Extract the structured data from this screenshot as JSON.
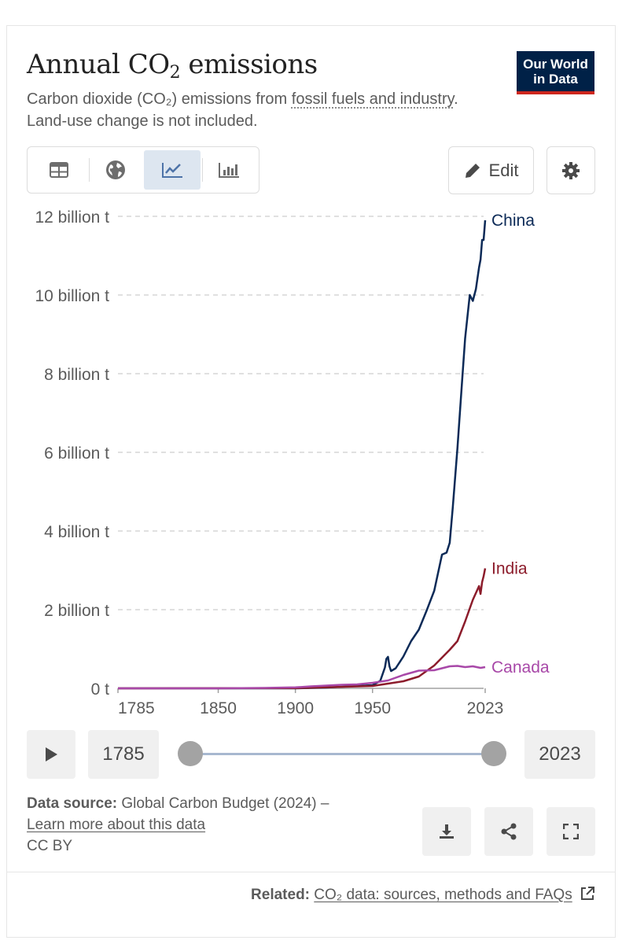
{
  "header": {
    "title_main": "Annual CO",
    "title_sub": "2",
    "title_rest": " emissions",
    "subtitle_pre": "Carbon dioxide (CO₂) emissions from ",
    "subtitle_link": "fossil fuels and industry",
    "subtitle_post": ". Land-use change is not included.",
    "logo_line1": "Our World",
    "logo_line2": "in Data"
  },
  "toolbar": {
    "tabs": [
      {
        "icon": "table-icon"
      },
      {
        "icon": "globe-icon"
      },
      {
        "icon": "line-chart-icon",
        "active": true
      },
      {
        "icon": "bar-chart-icon"
      }
    ],
    "edit_label": "Edit",
    "settings_icon": "gear-icon"
  },
  "colors": {
    "china": "#0c2a57",
    "india": "#8c1c2b",
    "canada": "#a848a8",
    "grid": "#d6d6d6",
    "accent": "#dde6f0"
  },
  "timeline": {
    "play_icon": "play-icon",
    "start_label": "1785",
    "end_label": "2023"
  },
  "footer": {
    "source_label": "Data source:",
    "source_text": " Global Carbon Budget (2024) –",
    "learn_more": "Learn more about this data",
    "license": "CC BY",
    "related_label": "Related:",
    "related_link": "CO₂ data: sources, methods and FAQs"
  },
  "chart_data": {
    "type": "line",
    "y_unit": "t",
    "ylim": [
      0,
      12000000000
    ],
    "xlim": [
      1785,
      2023
    ],
    "x_ticks": [
      "1785",
      "1850",
      "1900",
      "1950",
      "2023"
    ],
    "y_ticks": [
      "0 t",
      "2 billion t",
      "4 billion t",
      "6 billion t",
      "8 billion t",
      "10 billion t",
      "12 billion t"
    ],
    "grid": "horizontal dashed",
    "legend": "inline labels at line ends",
    "series": [
      {
        "name": "China",
        "x": [
          1785,
          1900,
          1920,
          1940,
          1950,
          1955,
          1958,
          1959,
          1960,
          1961,
          1962,
          1965,
          1970,
          1975,
          1980,
          1985,
          1990,
          1995,
          1998,
          2000,
          2002,
          2005,
          2008,
          2010,
          2013,
          2015,
          2017,
          2019,
          2020,
          2021,
          2022,
          2023
        ],
        "y": [
          0,
          0,
          20000000,
          60000000,
          80000000,
          190000000,
          530000000,
          750000000,
          800000000,
          560000000,
          440000000,
          510000000,
          810000000,
          1200000000,
          1490000000,
          1970000000,
          2480000000,
          3400000000,
          3450000000,
          3700000000,
          4600000000,
          6100000000,
          7800000000,
          8900000000,
          10000000000,
          9850000000,
          10150000000,
          10700000000,
          10900000000,
          11400000000,
          11400000000,
          11900000000
        ]
      },
      {
        "name": "India",
        "x": [
          1785,
          1900,
          1950,
          1960,
          1970,
          1980,
          1990,
          2000,
          2005,
          2010,
          2015,
          2019,
          2020,
          2021,
          2022,
          2023
        ],
        "y": [
          0,
          5000000,
          60000000,
          120000000,
          180000000,
          300000000,
          580000000,
          980000000,
          1200000000,
          1700000000,
          2250000000,
          2600000000,
          2400000000,
          2700000000,
          2850000000,
          3050000000
        ]
      },
      {
        "name": "Canada",
        "x": [
          1785,
          1850,
          1880,
          1900,
          1910,
          1920,
          1930,
          1940,
          1950,
          1960,
          1970,
          1980,
          1990,
          2000,
          2005,
          2010,
          2015,
          2020,
          2023
        ],
        "y": [
          0,
          1000000,
          10000000,
          25000000,
          50000000,
          70000000,
          90000000,
          100000000,
          140000000,
          200000000,
          340000000,
          450000000,
          460000000,
          560000000,
          570000000,
          540000000,
          560000000,
          520000000,
          540000000
        ]
      }
    ]
  }
}
